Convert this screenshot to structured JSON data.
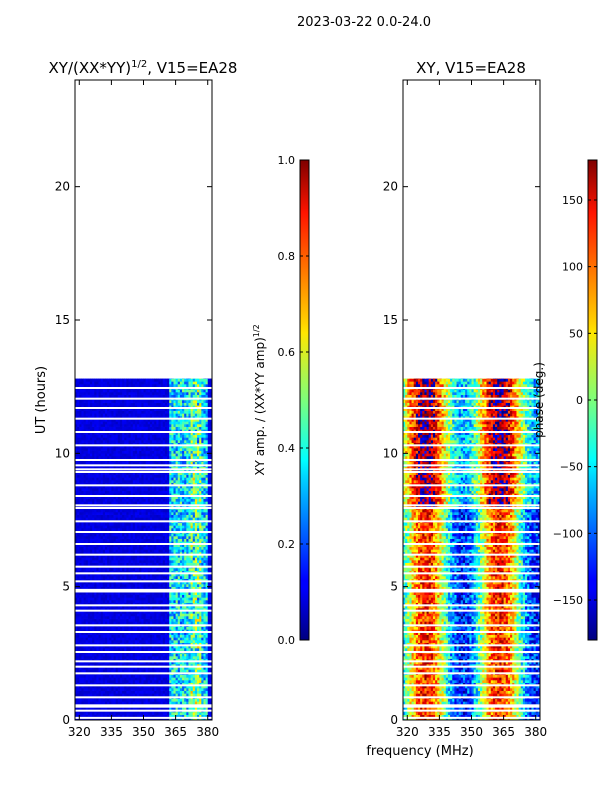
{
  "suptitle": "2023-03-22 0.0-24.0",
  "xlabel_shared": "frequency (MHz)",
  "colormap": "jet",
  "chart_data": [
    {
      "type": "heatmap",
      "title": "XY/(XX*YY)^1/2, V15=EA28",
      "title_main": "XY/(XX*YY)",
      "title_sup": "1/2",
      "title_rest": ", V15=EA28",
      "xlabel": "",
      "ylabel": "UT (hours)",
      "xlim": [
        318,
        382
      ],
      "ylim": [
        0,
        24
      ],
      "xticks": [
        320,
        335,
        350,
        365,
        380
      ],
      "yticks": [
        0,
        5,
        10,
        15,
        20
      ],
      "data_extent_hours": [
        0,
        12.8
      ],
      "colorbar": {
        "label": "XY amp. / (XX*YY amp)^1/2",
        "label_main": "XY amp. / (XX*YY amp)",
        "label_sup": "1/2",
        "range": [
          0,
          1
        ],
        "ticks": [
          "0.0",
          "0.2",
          "0.4",
          "0.6",
          "0.8",
          "1.0"
        ],
        "tick_values": [
          0,
          0.2,
          0.4,
          0.6,
          0.8,
          1.0
        ]
      }
    },
    {
      "type": "heatmap",
      "title": "XY, V15=EA28",
      "xlabel": "frequency (MHz)",
      "ylabel": "",
      "xlim": [
        318,
        382
      ],
      "ylim": [
        0,
        24
      ],
      "xticks": [
        320,
        335,
        350,
        365,
        380
      ],
      "yticks": [
        0,
        5,
        10,
        15,
        20
      ],
      "data_extent_hours": [
        0,
        12.8
      ],
      "colorbar": {
        "label": "phase (deg.)",
        "range": [
          -180,
          180
        ],
        "ticks": [
          "150",
          "100",
          "50",
          "0",
          "−50",
          "−100",
          "−150"
        ],
        "tick_values": [
          150,
          100,
          50,
          0,
          -50,
          -100,
          -150
        ]
      }
    }
  ],
  "flagged_rows_hours": [
    0.08,
    0.35,
    0.5,
    0.55,
    0.85,
    1.3,
    1.75,
    2.0,
    2.2,
    2.55,
    2.8,
    3.3,
    3.55,
    4.1,
    4.3,
    4.82,
    4.88,
    5.2,
    5.5,
    5.75,
    6.2,
    6.6,
    7.05,
    7.45,
    7.95,
    8.05,
    8.4,
    8.8,
    9.3,
    9.4,
    9.55,
    9.75,
    10.3,
    10.8,
    11.3,
    11.7,
    12.05,
    12.45
  ]
}
